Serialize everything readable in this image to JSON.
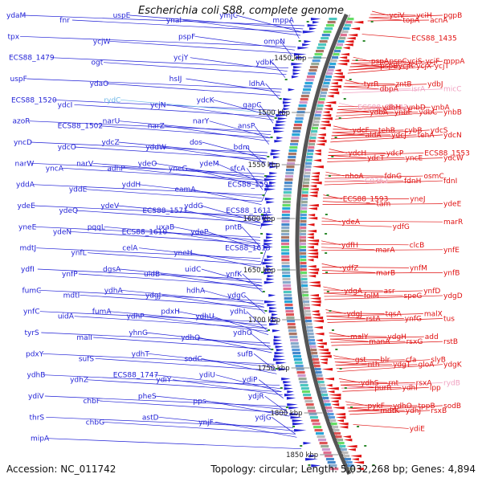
{
  "title": "Escherichia coli S88, complete genome",
  "footer": {
    "accession": "Accession: NC_011742",
    "stats": "Topology: circular; Length: 5,032,268 bp; Genes: 4,894"
  },
  "colors": {
    "forward": "#1f1fd6",
    "reverse": "#e01010",
    "pseudo_forward": "#6fb8e8",
    "pseudo_reverse": "#f0a0c0",
    "ruler": "#666666",
    "tick_mark": "#2e8b2e",
    "kbp_label": "#222222"
  },
  "scale": {
    "unit": "kbp",
    "ticks": [
      "1450 kbp",
      "1500 kbp",
      "1550 kbp",
      "1600 kbp",
      "1650 kbp",
      "1700 kbp",
      "1750 kbp",
      "1800 kbp",
      "1850 kbp"
    ]
  },
  "genes_left": [
    "ydaM",
    "fnr",
    "uspE",
    "ynaI",
    "ymjC",
    "mppA",
    "tpx",
    "ycjW",
    "pspF",
    "ompN",
    "ECS88_1479",
    "ogt",
    "ycjY",
    "ydbK",
    "uspF",
    "ydaO",
    "hsIJ",
    "ldhA",
    "ECS88_1520",
    "ydcI",
    "rydC",
    "ycjN",
    "ydcK",
    "gapC",
    "azoR",
    "ECS88_1502",
    "narU",
    "narZ",
    "narY",
    "ansP",
    "yncD",
    "ydcO",
    "ydcZ",
    "yddW",
    "dos",
    "bdm",
    "narW",
    "yncA",
    "narV",
    "adhP",
    "ydeO",
    "yneG",
    "ydeM",
    "sfcA",
    "yddA",
    "yddE",
    "yddH",
    "eamA",
    "ECS88_1591",
    "ydeE",
    "ydeQ",
    "ydeV",
    "ECS88_1571",
    "yddG",
    "ECS88_1611",
    "yneE",
    "ydeN",
    "pqqL",
    "ECS88_1610",
    "uxaB",
    "ydeP",
    "pntB",
    "mdtJ",
    "ynfL",
    "celA",
    "yneH",
    "ECS88_1613",
    "ydfI",
    "ynfP",
    "dgsA",
    "uidB",
    "uidC",
    "ynfK",
    "fumC",
    "mdtI",
    "ydhA",
    "ydgJ",
    "hdhA",
    "ydgC",
    "ynfC",
    "uidA",
    "fumA",
    "ydhP",
    "pdxH",
    "ydhU",
    "ydhL",
    "tyrS",
    "malI",
    "yhnG",
    "ydhQ",
    "ydhO",
    "pdxY",
    "sufS",
    "ydhT",
    "sodC",
    "sufB",
    "ydhB",
    "ydhZ",
    "ECS88_1747",
    "ydiY",
    "ydiU",
    "ydiP",
    "ydiV",
    "chbF",
    "pheS",
    "pps",
    "ydjR",
    "thrS",
    "chbG",
    "astD",
    "ynjF",
    "ydjG",
    "mipA"
  ],
  "genes_right": [
    "yciV",
    "topA",
    "yciH",
    "acnA",
    "pgpB",
    "ECS88_1435",
    "pspA",
    "pspB",
    "pspC",
    "ycjR",
    "ycjS",
    "ycjX",
    "ycjF",
    "ycjT",
    "mppA",
    "tyrR",
    "dbpA",
    "zntB",
    "isrA",
    "ydbJ",
    "micC",
    "ECS88_C0343",
    "ydbA",
    "ydbH",
    "ynbE",
    "ynbD",
    "ydbC",
    "ynbA",
    "ynbB",
    "ydcF",
    "aldA",
    "tehB",
    "ydcJ",
    "cybB",
    "tehA",
    "ydcS",
    "ydcN",
    "ydcH",
    "ydcT",
    "ydcP",
    "yncE",
    "ECS88_1553",
    "ydcW",
    "nhoA",
    "C0362",
    "fdnG",
    "fdnH",
    "osmC",
    "fdnI",
    "ECS88_1593",
    "tam",
    "yneJ",
    "ydeE",
    "ydeA",
    "ydfG",
    "marR",
    "ydfH",
    "marA",
    "clcB",
    "ynfE",
    "ydfZ",
    "marB",
    "ynfM",
    "ynfB",
    "ydgA",
    "folM",
    "asr",
    "speG",
    "ynfD",
    "ydgD",
    "ydgJ",
    "rstA",
    "tqsA",
    "ynfG",
    "malX",
    "tus",
    "malY",
    "manA",
    "ydgH",
    "rsxG",
    "add",
    "rstB",
    "gst",
    "nth",
    "blr",
    "ydgT",
    "cfa",
    "gloA",
    "slyB",
    "ydgK",
    "ydhS",
    "purR",
    "rnt",
    "ydhI",
    "rsxA",
    "lpp",
    "rydB",
    "pykF",
    "mdtK",
    "ydhO",
    "ydhJ",
    "tppB",
    "rsxB",
    "sodB",
    "ydiE"
  ]
}
